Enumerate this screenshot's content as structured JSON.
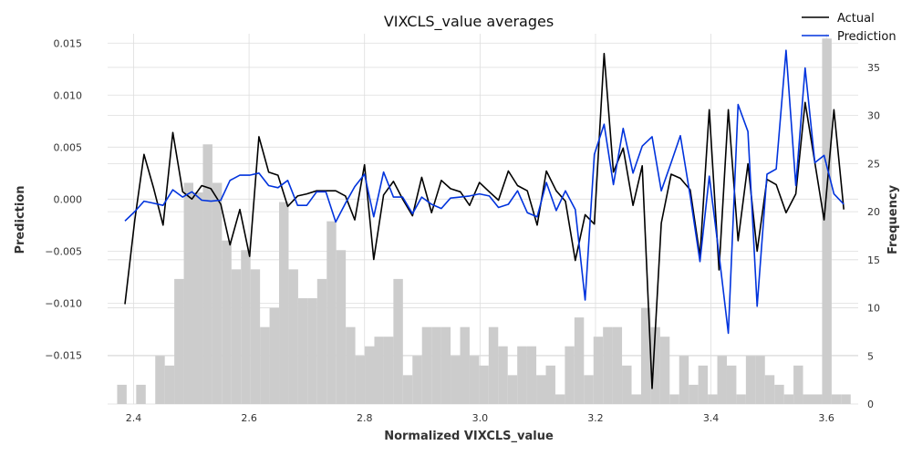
{
  "chart_data": {
    "type": "line",
    "title": "VIXCLS_value averages",
    "xlabel": "Normalized VIXCLS_value",
    "ylabel_left": "Prediction",
    "ylabel_right": "Frequency",
    "xlim": [
      2.355,
      3.655
    ],
    "ylim_left": [
      -0.0197,
      0.0159
    ],
    "ylim_right": [
      0,
      38.5
    ],
    "x_ticks": [
      2.4,
      2.6,
      2.8,
      3.0,
      3.2,
      3.4,
      3.6
    ],
    "x_tick_labels": [
      "2.4",
      "2.6",
      "2.8",
      "3.0",
      "3.2",
      "3.4",
      "3.6"
    ],
    "y_left_ticks": [
      0.015,
      0.01,
      0.005,
      0.0,
      -0.005,
      -0.01,
      -0.015
    ],
    "y_left_tick_labels": [
      "0.015",
      "0.010",
      "0.005",
      "0.000",
      "−0.005",
      "−0.010",
      "−0.015"
    ],
    "y_right_ticks": [
      0,
      5,
      10,
      15,
      20,
      25,
      30,
      35
    ],
    "y_right_tick_labels": [
      "0",
      "5",
      "10",
      "15",
      "20",
      "25",
      "30",
      "35"
    ],
    "grid": true,
    "legend_position": "top-right",
    "colors": {
      "actual": "#000000",
      "prediction": "#0033dd",
      "histogram": "#cccccc"
    },
    "series": [
      {
        "name": "Actual",
        "x": [
          2.385,
          2.402,
          2.418,
          2.435,
          2.451,
          2.468,
          2.485,
          2.501,
          2.518,
          2.534,
          2.551,
          2.567,
          2.584,
          2.601,
          2.617,
          2.634,
          2.65,
          2.667,
          2.684,
          2.7,
          2.717,
          2.733,
          2.75,
          2.767,
          2.783,
          2.8,
          2.816,
          2.833,
          2.85,
          2.866,
          2.883,
          2.899,
          2.916,
          2.933,
          2.949,
          2.966,
          2.982,
          2.999,
          3.016,
          3.032,
          3.049,
          3.065,
          3.082,
          3.099,
          3.115,
          3.132,
          3.148,
          3.165,
          3.182,
          3.198,
          3.215,
          3.231,
          3.248,
          3.265,
          3.281,
          3.298,
          3.314,
          3.331,
          3.347,
          3.364,
          3.381,
          3.397,
          3.414,
          3.43,
          3.447,
          3.464,
          3.48,
          3.497,
          3.513,
          3.53,
          3.547,
          3.563,
          3.58,
          3.596,
          3.613,
          3.63
        ],
        "values": [
          -0.0101,
          -0.002,
          0.0043,
          0.001,
          -0.0025,
          0.0064,
          0.0007,
          0.0,
          0.0013,
          0.001,
          -0.0005,
          -0.0044,
          -0.001,
          -0.0055,
          0.006,
          0.0026,
          0.0023,
          -0.0007,
          0.0003,
          0.0005,
          0.0008,
          0.0008,
          0.0008,
          0.0003,
          -0.002,
          0.0033,
          -0.0058,
          0.0004,
          0.0017,
          0.0,
          -0.0016,
          0.0021,
          -0.0013,
          0.0018,
          0.001,
          0.0007,
          -0.0006,
          0.0016,
          0.0007,
          -0.0001,
          0.0027,
          0.0013,
          0.0008,
          -0.0025,
          0.0027,
          0.0008,
          -0.0002,
          -0.0059,
          -0.0015,
          -0.0024,
          0.014,
          0.0026,
          0.0049,
          -0.0006,
          0.0032,
          -0.0182,
          -0.0023,
          0.0024,
          0.002,
          0.0009,
          -0.0055,
          0.0086,
          -0.0068,
          0.0086,
          -0.004,
          0.0034,
          -0.005,
          0.0019,
          0.0014,
          -0.0013,
          0.0005,
          0.0093,
          0.0035,
          -0.002,
          0.0086,
          -0.001
        ]
      },
      {
        "name": "Prediction",
        "x": [
          2.385,
          2.402,
          2.418,
          2.435,
          2.451,
          2.468,
          2.485,
          2.501,
          2.518,
          2.534,
          2.551,
          2.567,
          2.584,
          2.601,
          2.617,
          2.634,
          2.65,
          2.667,
          2.684,
          2.7,
          2.717,
          2.733,
          2.75,
          2.767,
          2.783,
          2.8,
          2.816,
          2.833,
          2.85,
          2.866,
          2.883,
          2.899,
          2.916,
          2.933,
          2.949,
          2.966,
          2.982,
          2.999,
          3.016,
          3.032,
          3.049,
          3.065,
          3.082,
          3.099,
          3.115,
          3.132,
          3.148,
          3.165,
          3.182,
          3.198,
          3.215,
          3.231,
          3.248,
          3.265,
          3.281,
          3.298,
          3.314,
          3.331,
          3.347,
          3.364,
          3.381,
          3.397,
          3.414,
          3.43,
          3.447,
          3.464,
          3.48,
          3.497,
          3.513,
          3.53,
          3.547,
          3.563,
          3.58,
          3.596,
          3.613,
          3.63
        ],
        "values": [
          -0.0021,
          -0.0012,
          -0.0002,
          -0.0004,
          -0.0006,
          0.0009,
          0.0002,
          0.0007,
          -0.0001,
          -0.0002,
          -0.0001,
          0.0018,
          0.0023,
          0.0023,
          0.0025,
          0.0013,
          0.0011,
          0.0018,
          -0.0006,
          -0.0006,
          0.0007,
          0.0007,
          -0.0022,
          -0.0004,
          0.0012,
          0.0024,
          -0.0017,
          0.0026,
          0.0002,
          0.0002,
          -0.0014,
          0.0002,
          -0.0005,
          -0.0009,
          0.0001,
          0.0002,
          0.0003,
          0.0005,
          0.0003,
          -0.0008,
          -0.0005,
          0.0008,
          -0.0013,
          -0.0017,
          0.0016,
          -0.0011,
          0.0008,
          -0.001,
          -0.0097,
          0.0043,
          0.0072,
          0.0014,
          0.0068,
          0.0025,
          0.0051,
          0.006,
          0.0008,
          0.0035,
          0.0061,
          0.0003,
          -0.006,
          0.0022,
          -0.0053,
          -0.0129,
          0.0091,
          0.0065,
          -0.0103,
          0.0024,
          0.0029,
          0.0143,
          0.0013,
          0.0126,
          0.0035,
          0.0042,
          0.0005,
          -0.0005
        ]
      }
    ],
    "histogram": {
      "name": "Frequency",
      "bin_width": 0.0165,
      "bin_left": [
        2.355,
        2.3715,
        2.388,
        2.4045,
        2.421,
        2.4375,
        2.454,
        2.4705,
        2.487,
        2.5035,
        2.52,
        2.5365,
        2.553,
        2.5695,
        2.586,
        2.6025,
        2.619,
        2.6355,
        2.652,
        2.6685,
        2.685,
        2.7015,
        2.718,
        2.7345,
        2.751,
        2.7675,
        2.784,
        2.8005,
        2.817,
        2.8335,
        2.85,
        2.8665,
        2.883,
        2.8995,
        2.916,
        2.9325,
        2.949,
        2.9655,
        2.982,
        2.9985,
        3.015,
        3.0315,
        3.048,
        3.0645,
        3.081,
        3.0975,
        3.114,
        3.1305,
        3.147,
        3.1635,
        3.18,
        3.1965,
        3.213,
        3.2295,
        3.246,
        3.2625,
        3.279,
        3.2955,
        3.312,
        3.3285,
        3.345,
        3.3615,
        3.378,
        3.3945,
        3.411,
        3.4275,
        3.444,
        3.4605,
        3.477,
        3.4935,
        3.51,
        3.5265,
        3.543,
        3.5595,
        3.576,
        3.5925,
        3.609,
        3.6255
      ],
      "counts": [
        0,
        2,
        0,
        2,
        0,
        5,
        4,
        13,
        23,
        22,
        27,
        23,
        17,
        14,
        16,
        14,
        8,
        10,
        21,
        14,
        11,
        11,
        13,
        19,
        16,
        8,
        5,
        6,
        7,
        7,
        13,
        3,
        5,
        8,
        8,
        8,
        5,
        8,
        5,
        4,
        8,
        6,
        3,
        6,
        6,
        3,
        4,
        1,
        6,
        9,
        3,
        7,
        8,
        8,
        4,
        1,
        10,
        8,
        7,
        1,
        5,
        2,
        4,
        1,
        5,
        4,
        1,
        5,
        5,
        3,
        2,
        1,
        4,
        1,
        1,
        38,
        1,
        1
      ]
    }
  }
}
